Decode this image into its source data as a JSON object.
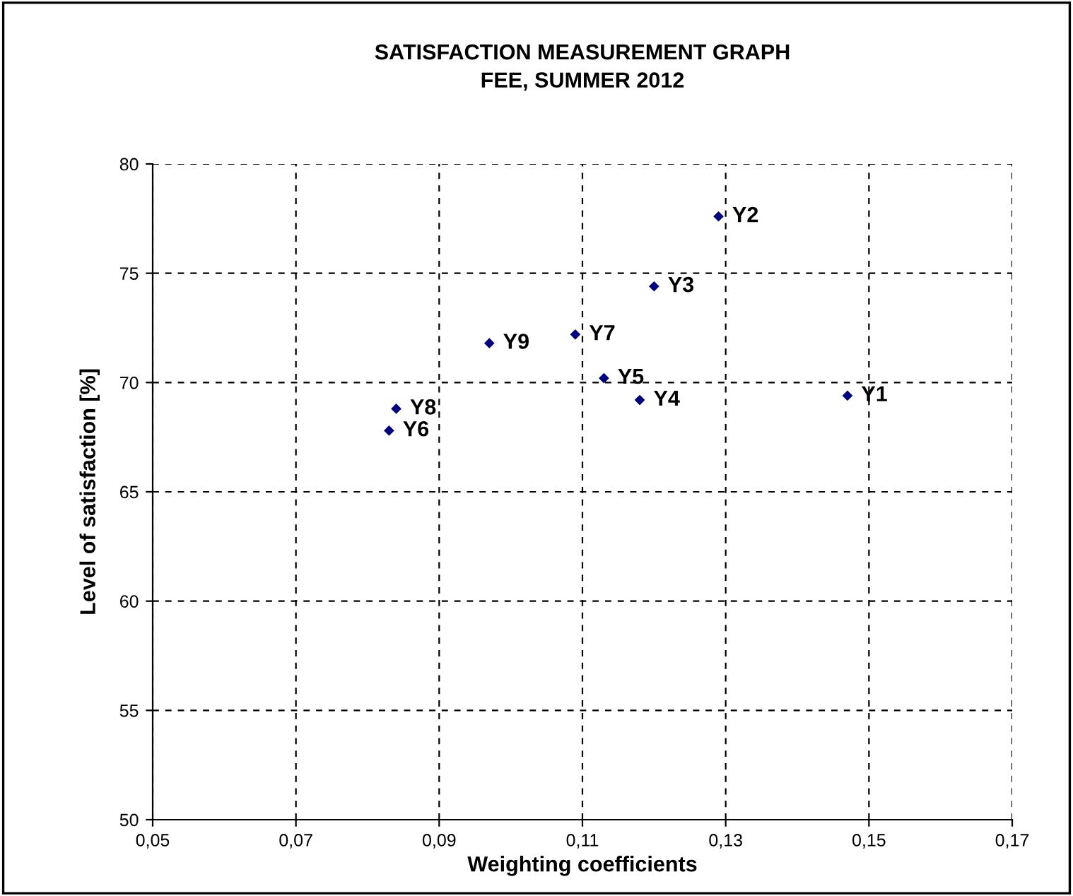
{
  "chart_data": {
    "type": "scatter",
    "title": "SATISFACTION MEASUREMENT GRAPH\nFEE, SUMMER 2012",
    "xlabel": "Weighting coefficients",
    "ylabel": "Level of satisfaction [%]",
    "x": [
      0.147,
      0.129,
      0.12,
      0.118,
      0.113,
      0.083,
      0.109,
      0.084,
      0.097
    ],
    "series": [
      {
        "color": "#000080",
        "values": [
          69.4,
          77.6,
          74.4,
          69.2,
          70.2,
          67.8,
          72.2,
          68.8,
          71.8
        ]
      }
    ],
    "annotations": [
      {
        "text": "Y1",
        "x": 0.147,
        "y": 69.4
      },
      {
        "text": "Y2",
        "x": 0.129,
        "y": 77.6
      },
      {
        "text": "Y3",
        "x": 0.12,
        "y": 74.4
      },
      {
        "text": "Y4",
        "x": 0.118,
        "y": 69.2
      },
      {
        "text": "Y5",
        "x": 0.113,
        "y": 70.2
      },
      {
        "text": "Y6",
        "x": 0.083,
        "y": 67.8
      },
      {
        "text": "Y7",
        "x": 0.109,
        "y": 72.2
      },
      {
        "text": "Y8",
        "x": 0.084,
        "y": 68.8
      },
      {
        "text": "Y9",
        "x": 0.097,
        "y": 71.8
      }
    ],
    "xlim": [
      0.05,
      0.17
    ],
    "xticks": [
      {
        "value": 0.05,
        "label": "0,05"
      },
      {
        "value": 0.07,
        "label": "0,07"
      },
      {
        "value": 0.09,
        "label": "0,09"
      },
      {
        "value": 0.11,
        "label": "0,11"
      },
      {
        "value": 0.13,
        "label": "0,13"
      },
      {
        "value": 0.15,
        "label": "0,15"
      },
      {
        "value": 0.17,
        "label": "0,17"
      }
    ],
    "ylim": [
      50,
      80
    ],
    "yticks": [
      50,
      55,
      60,
      65,
      70,
      75,
      80
    ],
    "grid": true,
    "marker": "diamond",
    "legend": false
  }
}
